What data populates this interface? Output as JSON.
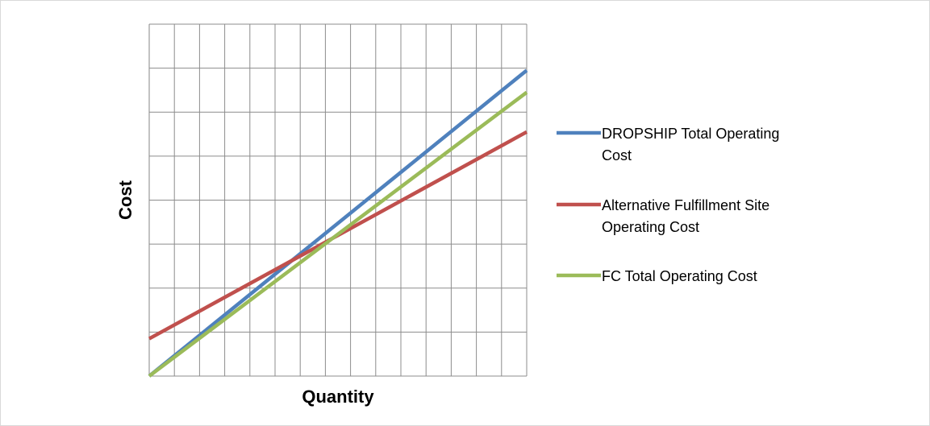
{
  "chart_data": {
    "type": "line",
    "title": "",
    "xlabel": "Quantity",
    "ylabel": "Cost",
    "xlim": [
      0,
      15
    ],
    "ylim": [
      0,
      8
    ],
    "grid": true,
    "grid_x_divisions": 15,
    "grid_y_divisions": 8,
    "tick_labels_shown": false,
    "legend_position": "right",
    "series": [
      {
        "name": "DROPSHIP Total  Operating Cost",
        "label_lines": [
          "DROPSHIP Total  Operating",
          "Cost"
        ],
        "color": "#4f81bd",
        "x": [
          0,
          15
        ],
        "y": [
          0,
          6.95
        ]
      },
      {
        "name": "Alternative Fulfillment Site Operating Cost",
        "label_lines": [
          "Alternative Fulfillment Site",
          "Operating Cost"
        ],
        "color": "#c0504d",
        "x": [
          0,
          15
        ],
        "y": [
          0.85,
          5.55
        ]
      },
      {
        "name": "FC Total Operating Cost",
        "label_lines": [
          "FC Total Operating Cost"
        ],
        "color": "#9bbb59",
        "x": [
          0,
          15
        ],
        "y": [
          0,
          6.45
        ]
      }
    ]
  }
}
